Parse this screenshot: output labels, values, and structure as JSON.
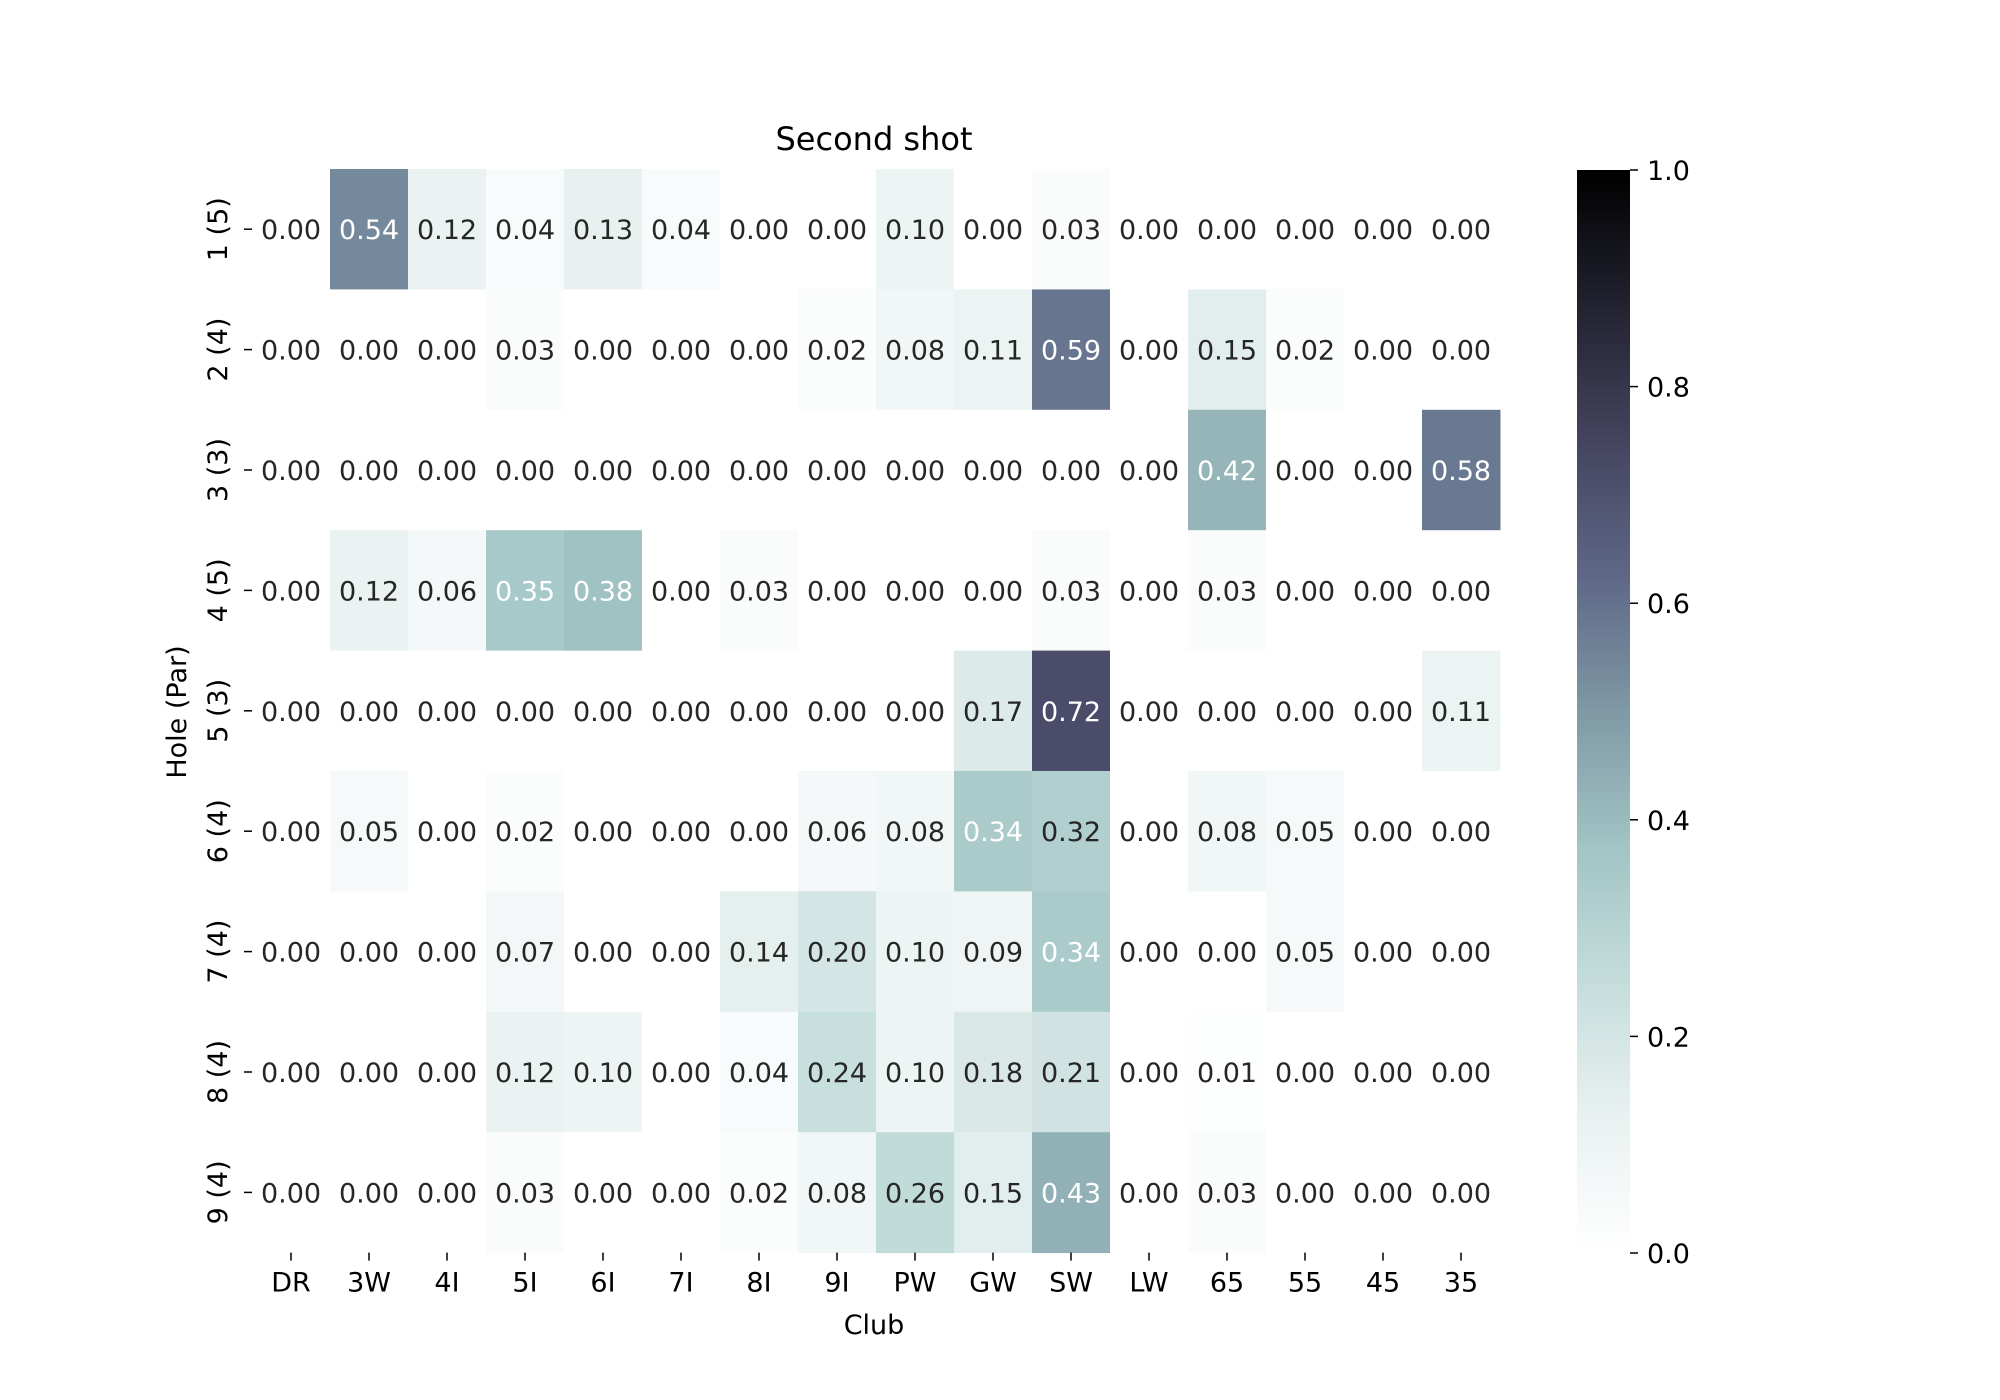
{
  "chart_data": {
    "type": "heatmap",
    "title": "Second shot",
    "xlabel": "Club",
    "ylabel": "Hole (Par)",
    "x_categories": [
      "DR",
      "3W",
      "4I",
      "5I",
      "6I",
      "7I",
      "8I",
      "9I",
      "PW",
      "GW",
      "SW",
      "LW",
      "65",
      "55",
      "45",
      "35"
    ],
    "y_categories": [
      "1 (5)",
      "2 (4)",
      "3 (3)",
      "4 (5)",
      "5 (3)",
      "6 (4)",
      "7 (4)",
      "8 (4)",
      "9 (4)"
    ],
    "values": [
      [
        0.0,
        0.54,
        0.12,
        0.04,
        0.13,
        0.04,
        0.0,
        0.0,
        0.1,
        0.0,
        0.03,
        0.0,
        0.0,
        0.0,
        0.0,
        0.0
      ],
      [
        0.0,
        0.0,
        0.0,
        0.03,
        0.0,
        0.0,
        0.0,
        0.02,
        0.08,
        0.11,
        0.59,
        0.0,
        0.15,
        0.02,
        0.0,
        0.0
      ],
      [
        0.0,
        0.0,
        0.0,
        0.0,
        0.0,
        0.0,
        0.0,
        0.0,
        0.0,
        0.0,
        0.0,
        0.0,
        0.42,
        0.0,
        0.0,
        0.58
      ],
      [
        0.0,
        0.12,
        0.06,
        0.35,
        0.38,
        0.0,
        0.03,
        0.0,
        0.0,
        0.0,
        0.03,
        0.0,
        0.03,
        0.0,
        0.0,
        0.0
      ],
      [
        0.0,
        0.0,
        0.0,
        0.0,
        0.0,
        0.0,
        0.0,
        0.0,
        0.0,
        0.17,
        0.72,
        0.0,
        0.0,
        0.0,
        0.0,
        0.11
      ],
      [
        0.0,
        0.05,
        0.0,
        0.02,
        0.0,
        0.0,
        0.0,
        0.06,
        0.08,
        0.34,
        0.32,
        0.0,
        0.08,
        0.05,
        0.0,
        0.0
      ],
      [
        0.0,
        0.0,
        0.0,
        0.07,
        0.0,
        0.0,
        0.14,
        0.2,
        0.1,
        0.09,
        0.34,
        0.0,
        0.0,
        0.05,
        0.0,
        0.0
      ],
      [
        0.0,
        0.0,
        0.0,
        0.12,
        0.1,
        0.0,
        0.04,
        0.24,
        0.1,
        0.18,
        0.21,
        0.0,
        0.01,
        0.0,
        0.0,
        0.0
      ],
      [
        0.0,
        0.0,
        0.0,
        0.03,
        0.0,
        0.0,
        0.02,
        0.08,
        0.26,
        0.15,
        0.43,
        0.0,
        0.03,
        0.0,
        0.0,
        0.0
      ]
    ],
    "colorbar": {
      "range": [
        0.0,
        1.0
      ],
      "ticks": [
        "0.0",
        "0.2",
        "0.4",
        "0.6",
        "0.8",
        "1.0"
      ],
      "colormap": "bone_r"
    },
    "value_format": "0.00",
    "grid": false
  }
}
